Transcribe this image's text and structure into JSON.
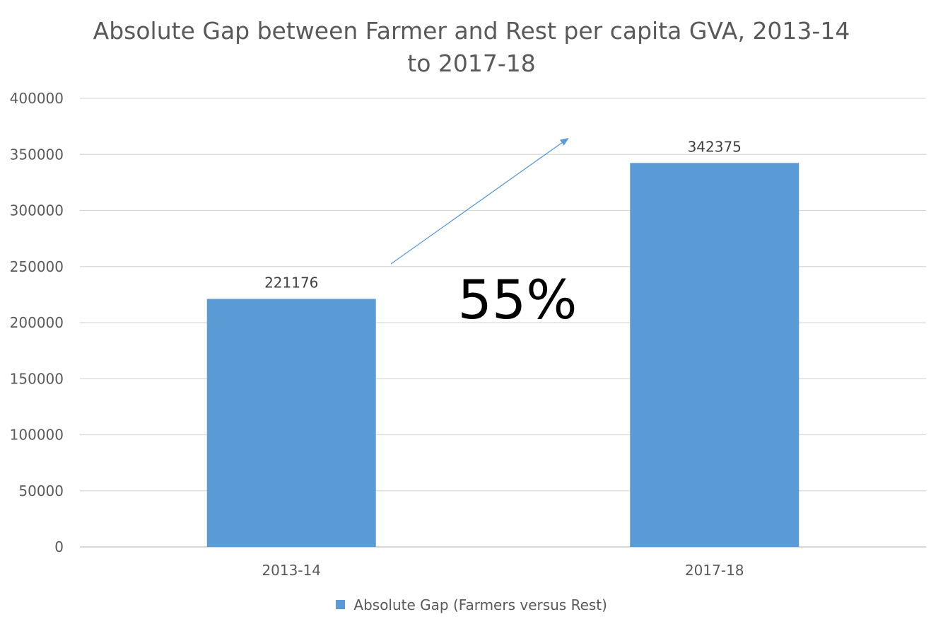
{
  "chart_data": {
    "type": "bar",
    "title_lines": [
      "Absolute Gap between Farmer and Rest per capita GVA, 2013-14",
      "to 2017-18"
    ],
    "categories": [
      "2013-14",
      "2017-18"
    ],
    "series": [
      {
        "name": "Absolute Gap (Farmers versus Rest)",
        "values": [
          221176,
          342375
        ],
        "color": "#5b9bd5"
      }
    ],
    "data_labels": [
      "221176",
      "342375"
    ],
    "y_ticks": [
      "0",
      "50000",
      "100000",
      "150000",
      "200000",
      "250000",
      "300000",
      "350000",
      "400000"
    ],
    "ylim": [
      0,
      400000
    ],
    "grid": true,
    "legend_position": "bottom",
    "annotation": {
      "text": "55%",
      "arrow_color": "#5b9bd5"
    }
  }
}
